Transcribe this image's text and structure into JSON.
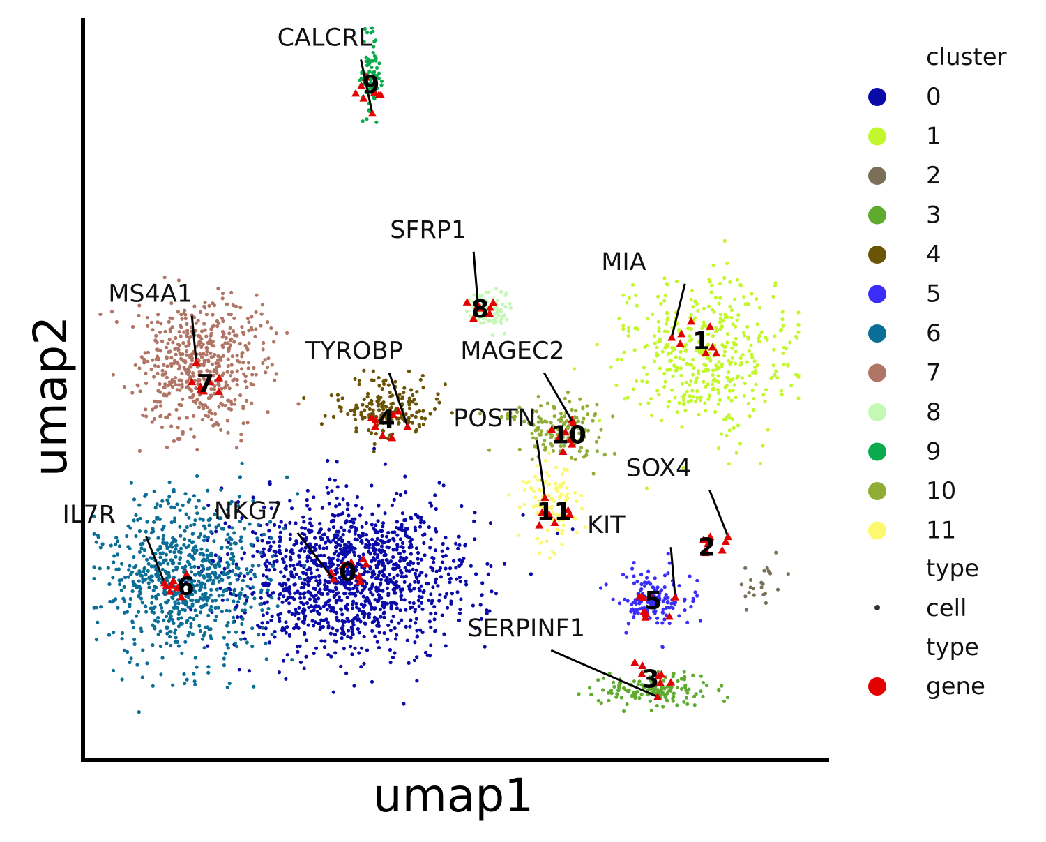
{
  "chart_data": {
    "type": "scatter",
    "xlabel": "umap1",
    "ylabel": "umap2",
    "xlim": [
      0,
      1
    ],
    "ylim": [
      0,
      1
    ],
    "grid": false,
    "legend_position": "right",
    "legend": {
      "cluster_title": "cluster",
      "type_title": "type",
      "cell_label": "cell",
      "gene_label": "gene"
    },
    "clusters": [
      {
        "id": "0",
        "color": "#0a0aa8",
        "center": [
          0.361,
          0.23
        ],
        "spread": [
          0.085,
          0.055
        ],
        "count": 1300
      },
      {
        "id": "1",
        "color": "#c3f72d",
        "center": [
          0.87,
          0.54
        ],
        "spread": [
          0.06,
          0.055
        ],
        "count": 420
      },
      {
        "id": "2",
        "color": "#7a7058",
        "center": [
          0.94,
          0.215
        ],
        "spread": [
          0.02,
          0.02
        ],
        "count": 22
      },
      {
        "id": "3",
        "color": "#5fab30",
        "center": [
          0.79,
          0.07
        ],
        "spread": [
          0.045,
          0.012
        ],
        "count": 150
      },
      {
        "id": "4",
        "color": "#6b5406",
        "center": [
          0.415,
          0.465
        ],
        "spread": [
          0.037,
          0.02
        ],
        "count": 180
      },
      {
        "id": "5",
        "color": "#3a2dfa",
        "center": [
          0.79,
          0.195
        ],
        "spread": [
          0.025,
          0.022
        ],
        "count": 150
      },
      {
        "id": "6",
        "color": "#0b6e96",
        "center": [
          0.13,
          0.225
        ],
        "spread": [
          0.055,
          0.06
        ],
        "count": 750
      },
      {
        "id": "7",
        "color": "#b07564",
        "center": [
          0.15,
          0.525
        ],
        "spread": [
          0.045,
          0.045
        ],
        "count": 520
      },
      {
        "id": "8",
        "color": "#c5f8b5",
        "center": [
          0.56,
          0.605
        ],
        "spread": [
          0.015,
          0.014
        ],
        "count": 80
      },
      {
        "id": "9",
        "color": "#0caa4e",
        "center": [
          0.395,
          0.94
        ],
        "spread": [
          0.008,
          0.03
        ],
        "count": 70
      },
      {
        "id": "10",
        "color": "#90ae36",
        "center": [
          0.66,
          0.437
        ],
        "spread": [
          0.035,
          0.022
        ],
        "count": 150
      },
      {
        "id": "11",
        "color": "#fcf970",
        "center": [
          0.65,
          0.33
        ],
        "spread": [
          0.02,
          0.03
        ],
        "count": 110
      }
    ],
    "genes": [
      {
        "name": "CALCRL",
        "point": [
          0.395,
          0.88
        ],
        "text": [
          0.26,
          0.975
        ]
      },
      {
        "name": "SFRP1",
        "point": [
          0.545,
          0.61
        ],
        "text": [
          0.42,
          0.705
        ]
      },
      {
        "name": "MIA",
        "point": [
          0.82,
          0.565
        ],
        "text": [
          0.72,
          0.66
        ]
      },
      {
        "name": "MS4A1",
        "point": [
          0.145,
          0.53
        ],
        "text": [
          0.02,
          0.615
        ]
      },
      {
        "name": "MAGEC2",
        "point": [
          0.68,
          0.445
        ],
        "text": [
          0.52,
          0.535
        ]
      },
      {
        "name": "TYROBP",
        "point": [
          0.445,
          0.44
        ],
        "text": [
          0.3,
          0.535
        ]
      },
      {
        "name": "POSTN",
        "point": [
          0.64,
          0.34
        ],
        "text": [
          0.51,
          0.44
        ]
      },
      {
        "name": "SOX4",
        "point": [
          0.9,
          0.285
        ],
        "text": [
          0.755,
          0.37
        ]
      },
      {
        "name": "NKG7",
        "point": [
          0.34,
          0.225
        ],
        "text": [
          0.17,
          0.31
        ]
      },
      {
        "name": "IL7R",
        "point": [
          0.1,
          0.22
        ],
        "text": [
          -0.045,
          0.305
        ]
      },
      {
        "name": "KIT",
        "point": [
          0.825,
          0.2
        ],
        "text": [
          0.7,
          0.29
        ]
      },
      {
        "name": "SERPINF1",
        "point": [
          0.8,
          0.06
        ],
        "text": [
          0.53,
          0.145
        ]
      }
    ],
    "cluster_labels": [
      {
        "id": "0",
        "pos": [
          0.36,
          0.235
        ]
      },
      {
        "id": "1",
        "pos": [
          0.862,
          0.56
        ]
      },
      {
        "id": "2",
        "pos": [
          0.87,
          0.27
        ]
      },
      {
        "id": "3",
        "pos": [
          0.79,
          0.085
        ]
      },
      {
        "id": "4",
        "pos": [
          0.415,
          0.45
        ]
      },
      {
        "id": "5",
        "pos": [
          0.794,
          0.195
        ]
      },
      {
        "id": "6",
        "pos": [
          0.13,
          0.215
        ]
      },
      {
        "id": "7",
        "pos": [
          0.158,
          0.5
        ]
      },
      {
        "id": "8",
        "pos": [
          0.548,
          0.605
        ]
      },
      {
        "id": "9",
        "pos": [
          0.393,
          0.92
        ]
      },
      {
        "id": "10",
        "pos": [
          0.674,
          0.428
        ]
      },
      {
        "id": "11",
        "pos": [
          0.653,
          0.32
        ]
      }
    ]
  }
}
